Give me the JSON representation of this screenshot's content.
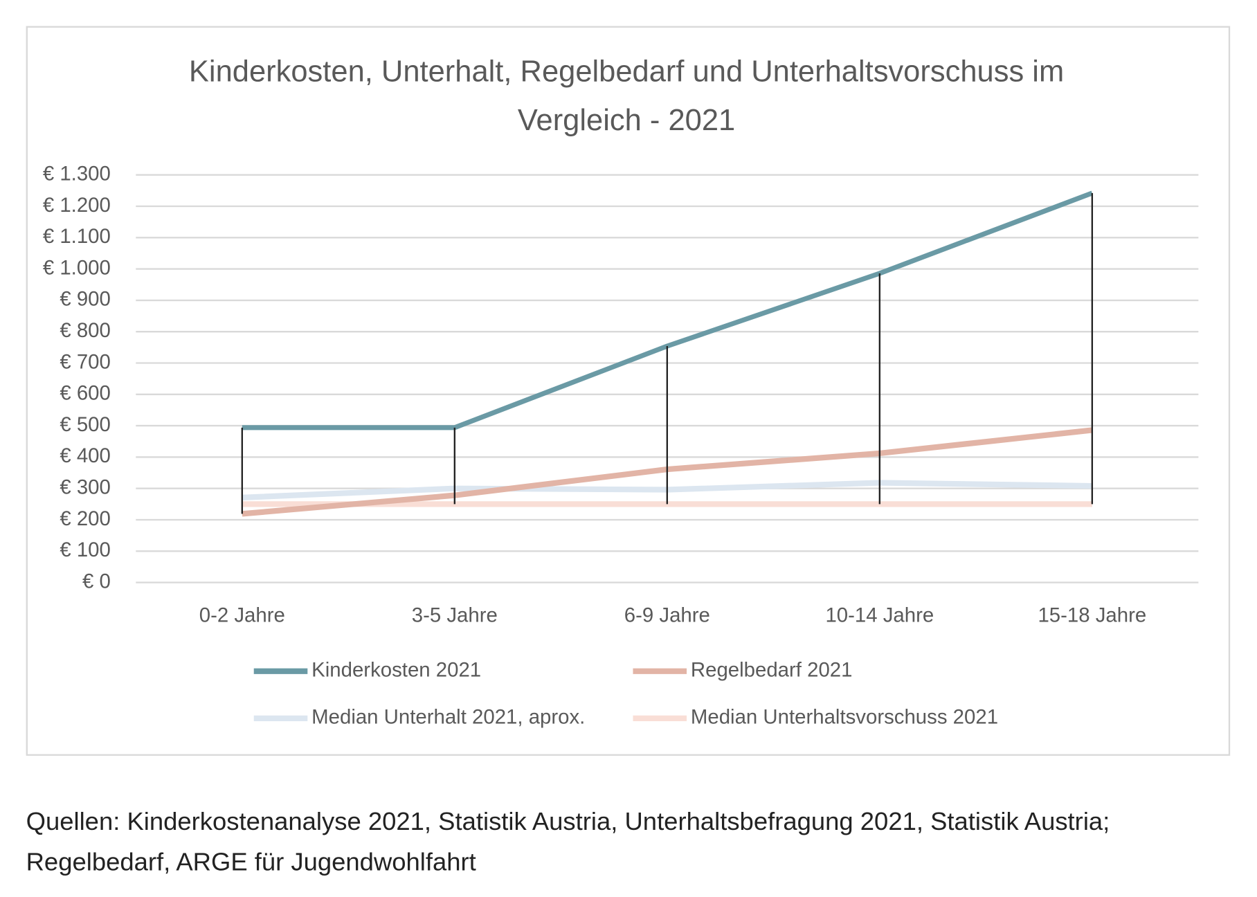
{
  "chart_data": {
    "type": "line",
    "title": "Kinderkosten, Unterhalt, Regelbedarf und Unterhaltsvorschuss im Vergleich - 2021",
    "categories": [
      "0-2 Jahre",
      "3-5 Jahre",
      "6-9 Jahre",
      "10-14 Jahre",
      "15-18 Jahre"
    ],
    "series": [
      {
        "name": "Kinderkosten 2021",
        "color": "#6a9aa5",
        "values": [
          494,
          494,
          754,
          986,
          1242
        ]
      },
      {
        "name": "Regelbedarf 2021",
        "color": "#e2b4a6",
        "values": [
          219,
          278,
          361,
          412,
          486
        ]
      },
      {
        "name": "Median Unterhalt 2021, aprox.",
        "color": "#dce6f0",
        "values": [
          271,
          300,
          296,
          318,
          308
        ]
      },
      {
        "name": "Median Unterhaltsvorschuss 2021",
        "color": "#f9ded6",
        "values": [
          250,
          250,
          250,
          250,
          250
        ]
      }
    ],
    "ylim": [
      0,
      1300
    ],
    "yticks": [
      {
        "value": 0,
        "label": "€ 0"
      },
      {
        "value": 100,
        "label": "€ 100"
      },
      {
        "value": 200,
        "label": "€ 200"
      },
      {
        "value": 300,
        "label": "€ 300"
      },
      {
        "value": 400,
        "label": "€ 400"
      },
      {
        "value": 500,
        "label": "€ 500"
      },
      {
        "value": 600,
        "label": "€ 600"
      },
      {
        "value": 700,
        "label": "€ 700"
      },
      {
        "value": 800,
        "label": "€ 800"
      },
      {
        "value": 900,
        "label": "€ 900"
      },
      {
        "value": 1000,
        "label": "€ 1.000"
      },
      {
        "value": 1100,
        "label": "€ 1.100"
      },
      {
        "value": 1200,
        "label": "€ 1.200"
      },
      {
        "value": 1300,
        "label": "€ 1.300"
      }
    ],
    "grid": true,
    "high_low_lines": true,
    "legend": "bottom"
  },
  "source": "Quellen: Kinderkostenanalyse 2021, Statistik Austria, Unterhaltsbefragung 2021, Statistik Austria; Regelbedarf, ARGE für Jugendwohlfahrt"
}
